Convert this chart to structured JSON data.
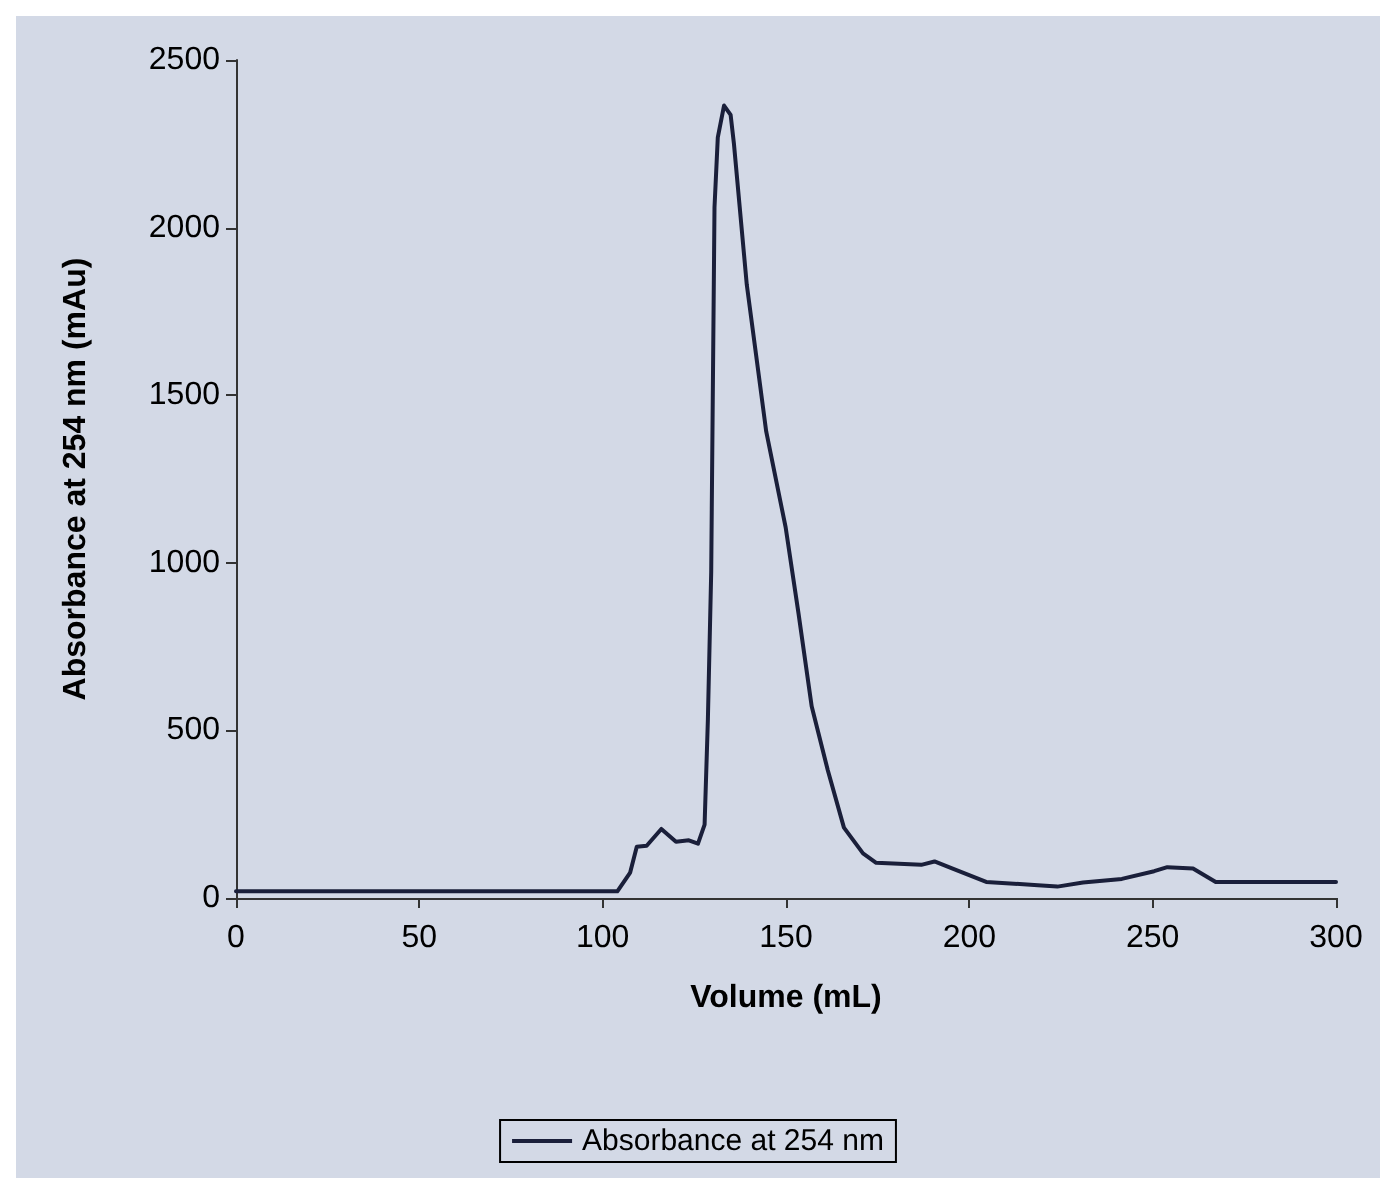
{
  "chart_data": {
    "type": "line",
    "xlabel": "Volume (mL)",
    "ylabel": "Absorbance at 254 nm (mAu)",
    "xlim": [
      0,
      300
    ],
    "xticks": [
      0,
      50,
      100,
      150,
      200,
      250,
      300
    ],
    "ylim": [
      0,
      2500
    ],
    "yticks": [
      0,
      500,
      1000,
      1500,
      2000,
      2500
    ],
    "grid": false,
    "legend": "bottom",
    "marker": "none",
    "line_style": "solid",
    "x": [
      0,
      104,
      107.5,
      109.3,
      112,
      116,
      120,
      123.5,
      126,
      127.8,
      128.7,
      129.6,
      130.5,
      131.4,
      133.1,
      134.9,
      135.8,
      139.3,
      144.6,
      149.9,
      153.4,
      157,
      161.4,
      165.8,
      171,
      174.6,
      186.9,
      190.5,
      195.8,
      204.6,
      218.7,
      224,
      231,
      241.6,
      250.4,
      254,
      261,
      267.2,
      300
    ],
    "series": [
      {
        "name": "Absorbance at 254 nm",
        "color": "#1a1f3a",
        "values": [
          20,
          20,
          76,
          153,
          156,
          206,
          168,
          172,
          162,
          219,
          534,
          972,
          2060,
          2269,
          2364,
          2336,
          2250,
          1830,
          1392,
          1106,
          850,
          572,
          381,
          210,
          133,
          105,
          99,
          109,
          86,
          48,
          38,
          34,
          46,
          57,
          80,
          92,
          88,
          48,
          48
        ]
      }
    ]
  }
}
